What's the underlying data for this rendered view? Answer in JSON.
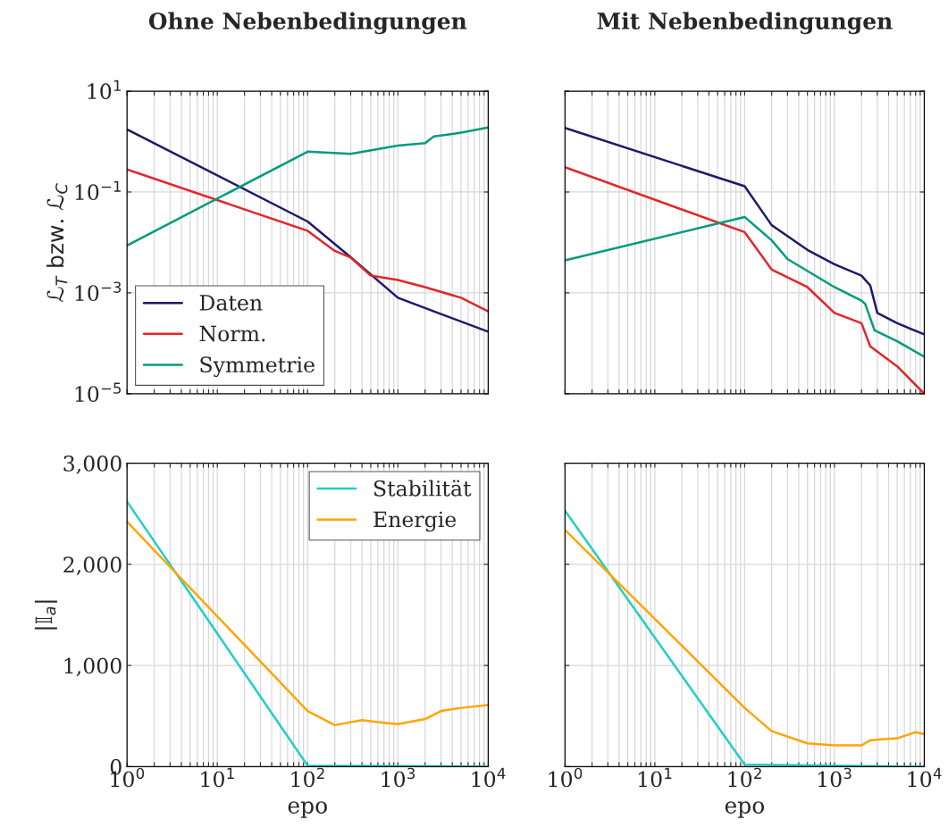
{
  "chart_data": [
    {
      "type": "line",
      "title": "Ohne Nebenbedingungen",
      "ylabel": "ℒ$_{T}$ bzw. ℒ$_{C}$",
      "log": "xy",
      "grid": true,
      "legend": "bottom left",
      "tick_labels": "y",
      "xlim": [
        1,
        10000
      ],
      "ylim": [
        1e-05,
        10
      ],
      "xticks": [
        {
          "value": 1,
          "label": null
        },
        {
          "value": 2,
          "label": null
        },
        {
          "value": 3,
          "label": null
        },
        {
          "value": 4,
          "label": null
        },
        {
          "value": 5,
          "label": null
        },
        {
          "value": 6,
          "label": null
        },
        {
          "value": 7,
          "label": null
        },
        {
          "value": 8,
          "label": null
        },
        {
          "value": 9,
          "label": null
        },
        {
          "value": 10,
          "label": null
        },
        {
          "value": 20,
          "label": null
        },
        {
          "value": 30,
          "label": null
        },
        {
          "value": 40,
          "label": null
        },
        {
          "value": 50,
          "label": null
        },
        {
          "value": 60,
          "label": null
        },
        {
          "value": 70,
          "label": null
        },
        {
          "value": 80,
          "label": null
        },
        {
          "value": 90,
          "label": null
        },
        {
          "value": 100,
          "label": null
        },
        {
          "value": 200,
          "label": null
        },
        {
          "value": 300,
          "label": null
        },
        {
          "value": 400,
          "label": null
        },
        {
          "value": 500,
          "label": null
        },
        {
          "value": 600,
          "label": null
        },
        {
          "value": 700,
          "label": null
        },
        {
          "value": 800,
          "label": null
        },
        {
          "value": 900,
          "label": null
        },
        {
          "value": 1000,
          "label": null
        },
        {
          "value": 2000,
          "label": null
        },
        {
          "value": 3000,
          "label": null
        },
        {
          "value": 4000,
          "label": null
        },
        {
          "value": 5000,
          "label": null
        },
        {
          "value": 6000,
          "label": null
        },
        {
          "value": 7000,
          "label": null
        },
        {
          "value": 8000,
          "label": null
        },
        {
          "value": 9000,
          "label": null
        },
        {
          "value": 10000,
          "label": null
        }
      ],
      "yticks": [
        {
          "value": 1e-05,
          "label": "10$^{−5}$"
        },
        {
          "value": 0.001,
          "label": "10$^{−3}$"
        },
        {
          "value": 0.1,
          "label": "10$^{−1}$"
        },
        {
          "value": 10,
          "label": "10$^{1}$"
        }
      ],
      "series": [
        {
          "name": "Daten",
          "color": "#1f1a6b",
          "x": [
            1,
            100,
            300,
            1000,
            3000,
            10000
          ],
          "values": [
            1.74,
            0.026,
            0.0051,
            0.0008,
            0.00038,
            0.00017
          ]
        },
        {
          "name": "Norm.",
          "color": "#e3262a",
          "x": [
            1,
            100,
            200,
            300,
            500,
            1000,
            2000,
            5000,
            10000
          ],
          "values": [
            0.28,
            0.017,
            0.0068,
            0.005,
            0.0022,
            0.0018,
            0.0013,
            0.0008,
            0.00043
          ]
        },
        {
          "name": "Symmetrie",
          "color": "#009b7d",
          "x": [
            1,
            100,
            300,
            1000,
            2000,
            2500,
            5000,
            10000
          ],
          "values": [
            0.0087,
            0.63,
            0.57,
            0.83,
            0.93,
            1.26,
            1.5,
            1.9
          ]
        }
      ]
    },
    {
      "type": "line",
      "title": "Mit Nebenbedingungen",
      "log": "xy",
      "grid": true,
      "tick_labels": false,
      "xlim": [
        1,
        10000
      ],
      "ylim": [
        1e-05,
        10
      ],
      "xticks": [
        {
          "value": 1,
          "label": null
        },
        {
          "value": 2,
          "label": null
        },
        {
          "value": 3,
          "label": null
        },
        {
          "value": 4,
          "label": null
        },
        {
          "value": 5,
          "label": null
        },
        {
          "value": 6,
          "label": null
        },
        {
          "value": 7,
          "label": null
        },
        {
          "value": 8,
          "label": null
        },
        {
          "value": 9,
          "label": null
        },
        {
          "value": 10,
          "label": null
        },
        {
          "value": 20,
          "label": null
        },
        {
          "value": 30,
          "label": null
        },
        {
          "value": 40,
          "label": null
        },
        {
          "value": 50,
          "label": null
        },
        {
          "value": 60,
          "label": null
        },
        {
          "value": 70,
          "label": null
        },
        {
          "value": 80,
          "label": null
        },
        {
          "value": 90,
          "label": null
        },
        {
          "value": 100,
          "label": null
        },
        {
          "value": 200,
          "label": null
        },
        {
          "value": 300,
          "label": null
        },
        {
          "value": 400,
          "label": null
        },
        {
          "value": 500,
          "label": null
        },
        {
          "value": 600,
          "label": null
        },
        {
          "value": 700,
          "label": null
        },
        {
          "value": 800,
          "label": null
        },
        {
          "value": 900,
          "label": null
        },
        {
          "value": 1000,
          "label": null
        },
        {
          "value": 2000,
          "label": null
        },
        {
          "value": 3000,
          "label": null
        },
        {
          "value": 4000,
          "label": null
        },
        {
          "value": 5000,
          "label": null
        },
        {
          "value": 6000,
          "label": null
        },
        {
          "value": 7000,
          "label": null
        },
        {
          "value": 8000,
          "label": null
        },
        {
          "value": 9000,
          "label": null
        },
        {
          "value": 10000,
          "label": null
        }
      ],
      "yticks": [
        {
          "value": 1e-05,
          "label": null
        },
        {
          "value": 0.001,
          "label": null
        },
        {
          "value": 0.1,
          "label": null
        },
        {
          "value": 10,
          "label": null
        }
      ],
      "series": [
        {
          "color": "#1f1a6b",
          "x": [
            1,
            100,
            200,
            500,
            1000,
            2000,
            2500,
            3000,
            5000,
            10000
          ],
          "values": [
            1.86,
            0.13,
            0.022,
            0.0071,
            0.0037,
            0.0022,
            0.0014,
            0.0004,
            0.00025,
            0.00015
          ]
        },
        {
          "color": "#e3262a",
          "x": [
            1,
            100,
            200,
            500,
            1000,
            2000,
            2500,
            5000,
            10000
          ],
          "values": [
            0.31,
            0.016,
            0.0029,
            0.0013,
            0.0004,
            0.00025,
            8.7e-05,
            3.5e-05,
            1e-05
          ]
        },
        {
          "color": "#009b7d",
          "x": [
            1,
            100,
            200,
            300,
            1000,
            2000,
            2200,
            2800,
            5000,
            10000
          ],
          "values": [
            0.0044,
            0.032,
            0.011,
            0.0047,
            0.0013,
            0.0007,
            0.0006,
            0.00018,
            0.00011,
            5.4e-05
          ]
        }
      ]
    },
    {
      "type": "line",
      "xlabel": "epo",
      "ylabel": "|𝕀$_{a}$|",
      "log": "x",
      "grid": true,
      "legend": "top right",
      "xlim": [
        1,
        10000
      ],
      "ylim": [
        0,
        3000
      ],
      "xticks": [
        {
          "value": 1,
          "label": "10$^{0}$"
        },
        {
          "value": 2,
          "label": null
        },
        {
          "value": 3,
          "label": null
        },
        {
          "value": 4,
          "label": null
        },
        {
          "value": 5,
          "label": null
        },
        {
          "value": 6,
          "label": null
        },
        {
          "value": 7,
          "label": null
        },
        {
          "value": 8,
          "label": null
        },
        {
          "value": 9,
          "label": null
        },
        {
          "value": 10,
          "label": "10$^{1}$"
        },
        {
          "value": 20,
          "label": null
        },
        {
          "value": 30,
          "label": null
        },
        {
          "value": 40,
          "label": null
        },
        {
          "value": 50,
          "label": null
        },
        {
          "value": 60,
          "label": null
        },
        {
          "value": 70,
          "label": null
        },
        {
          "value": 80,
          "label": null
        },
        {
          "value": 90,
          "label": null
        },
        {
          "value": 100,
          "label": "10$^{2}$"
        },
        {
          "value": 200,
          "label": null
        },
        {
          "value": 300,
          "label": null
        },
        {
          "value": 400,
          "label": null
        },
        {
          "value": 500,
          "label": null
        },
        {
          "value": 600,
          "label": null
        },
        {
          "value": 700,
          "label": null
        },
        {
          "value": 800,
          "label": null
        },
        {
          "value": 900,
          "label": null
        },
        {
          "value": 1000,
          "label": "10$^{3}$"
        },
        {
          "value": 2000,
          "label": null
        },
        {
          "value": 3000,
          "label": null
        },
        {
          "value": 4000,
          "label": null
        },
        {
          "value": 5000,
          "label": null
        },
        {
          "value": 6000,
          "label": null
        },
        {
          "value": 7000,
          "label": null
        },
        {
          "value": 8000,
          "label": null
        },
        {
          "value": 9000,
          "label": null
        },
        {
          "value": 10000,
          "label": "10$^{4}$"
        }
      ],
      "yticks": [
        0,
        {
          "value": 1000,
          "label": "1,000"
        },
        {
          "value": 2000,
          "label": "2,000"
        },
        {
          "value": 3000,
          "label": "3,000"
        }
      ],
      "series": [
        {
          "name": "Stabilität",
          "color": "#1fcfc9",
          "x": [
            1,
            100,
            10000
          ],
          "values": [
            2620,
            10,
            0
          ]
        },
        {
          "name": "Energie",
          "color": "#ffa500",
          "x": [
            1,
            100,
            200,
            400,
            600,
            1000,
            2000,
            3000,
            5000,
            10000
          ],
          "values": [
            2420,
            550,
            410,
            460,
            440,
            420,
            470,
            550,
            580,
            610
          ]
        }
      ]
    },
    {
      "type": "line",
      "xlabel": "epo",
      "log": "x",
      "grid": true,
      "tick_labels": "x",
      "xlim": [
        1,
        10000
      ],
      "ylim": [
        0,
        3000
      ],
      "xticks": [
        {
          "value": 1,
          "label": "10$^{0}$"
        },
        {
          "value": 2,
          "label": null
        },
        {
          "value": 3,
          "label": null
        },
        {
          "value": 4,
          "label": null
        },
        {
          "value": 5,
          "label": null
        },
        {
          "value": 6,
          "label": null
        },
        {
          "value": 7,
          "label": null
        },
        {
          "value": 8,
          "label": null
        },
        {
          "value": 9,
          "label": null
        },
        {
          "value": 10,
          "label": "10$^{1}$"
        },
        {
          "value": 20,
          "label": null
        },
        {
          "value": 30,
          "label": null
        },
        {
          "value": 40,
          "label": null
        },
        {
          "value": 50,
          "label": null
        },
        {
          "value": 60,
          "label": null
        },
        {
          "value": 70,
          "label": null
        },
        {
          "value": 80,
          "label": null
        },
        {
          "value": 90,
          "label": null
        },
        {
          "value": 100,
          "label": "10$^{2}$"
        },
        {
          "value": 200,
          "label": null
        },
        {
          "value": 300,
          "label": null
        },
        {
          "value": 400,
          "label": null
        },
        {
          "value": 500,
          "label": null
        },
        {
          "value": 600,
          "label": null
        },
        {
          "value": 700,
          "label": null
        },
        {
          "value": 800,
          "label": null
        },
        {
          "value": 900,
          "label": null
        },
        {
          "value": 1000,
          "label": "10$^{3}$"
        },
        {
          "value": 2000,
          "label": null
        },
        {
          "value": 3000,
          "label": null
        },
        {
          "value": 4000,
          "label": null
        },
        {
          "value": 5000,
          "label": null
        },
        {
          "value": 6000,
          "label": null
        },
        {
          "value": 7000,
          "label": null
        },
        {
          "value": 8000,
          "label": null
        },
        {
          "value": 9000,
          "label": null
        },
        {
          "value": 10000,
          "label": "10$^{4}$"
        }
      ],
      "yticks": [
        {
          "value": 0,
          "label": null
        },
        {
          "value": 1000,
          "label": null
        },
        {
          "value": 2000,
          "label": null
        },
        {
          "value": 3000,
          "label": null
        }
      ],
      "series": [
        {
          "color": "#1fcfc9",
          "x": [
            1,
            100,
            10000
          ],
          "values": [
            2530,
            20,
            0
          ]
        },
        {
          "color": "#ffa500",
          "x": [
            1,
            100,
            200,
            500,
            1000,
            2000,
            2500,
            5000,
            8000,
            10000
          ],
          "values": [
            2340,
            580,
            350,
            230,
            210,
            210,
            260,
            280,
            340,
            320
          ]
        }
      ]
    }
  ]
}
